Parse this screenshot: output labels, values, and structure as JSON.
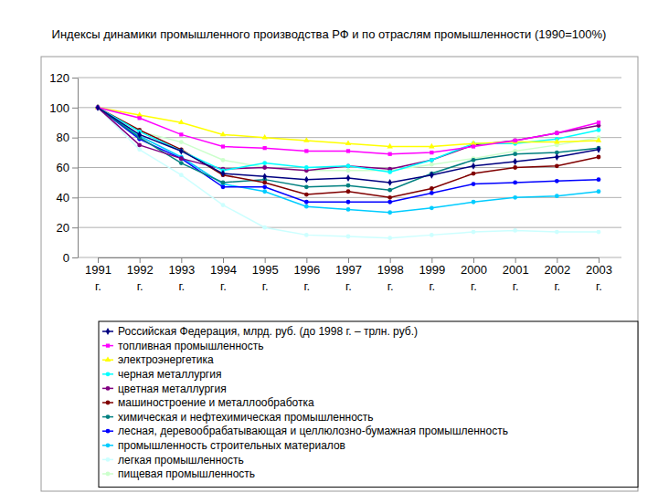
{
  "chart_data": {
    "type": "line",
    "title": "Индексы динамики промышленного производства РФ и по отраслям промышленности (1990=100%)",
    "categories": [
      "1991 г.",
      "1992 г.",
      "1993 г.",
      "1994 г.",
      "1995 г.",
      "1996 г.",
      "1997 г.",
      "1998 г.",
      "1999 г.",
      "2000 г.",
      "2001 г.",
      "2002 г.",
      "2003 г."
    ],
    "ylim": [
      0,
      120
    ],
    "yticks": [
      0,
      20,
      40,
      60,
      80,
      100,
      120
    ],
    "grid": true,
    "legend": "bottom",
    "series": [
      {
        "name": "Российская Федерация, млрд. руб. (до 1998 г. – трлн. руб.)",
        "color": "#000080",
        "marker": "diamond",
        "values": [
          100,
          82,
          71,
          56,
          54,
          52,
          53,
          50,
          55,
          61,
          64,
          67,
          72
        ]
      },
      {
        "name": "топливная промышленность",
        "color": "#ff00ff",
        "marker": "square",
        "values": [
          100,
          93,
          82,
          74,
          73,
          71,
          71,
          69,
          70,
          74,
          78,
          83,
          90
        ]
      },
      {
        "name": "электроэнергетика",
        "color": "#ffff00",
        "marker": "triangle",
        "values": [
          100,
          95,
          90,
          82,
          80,
          78,
          76,
          74,
          74,
          76,
          77,
          77,
          78
        ]
      },
      {
        "name": "черная металлургия",
        "color": "#00ffff",
        "marker": "circle",
        "values": [
          100,
          84,
          71,
          58,
          63,
          60,
          61,
          57,
          65,
          76,
          76,
          79,
          85
        ]
      },
      {
        "name": "цветная металлургия",
        "color": "#800080",
        "marker": "circle",
        "values": [
          100,
          75,
          66,
          59,
          60,
          58,
          61,
          59,
          65,
          75,
          78,
          83,
          88
        ]
      },
      {
        "name": "машиностроение и металлообработка",
        "color": "#800000",
        "marker": "circle",
        "values": [
          100,
          85,
          72,
          55,
          50,
          42,
          44,
          40,
          46,
          56,
          60,
          61,
          67
        ]
      },
      {
        "name": "химическая и нефтехимическая промышленность",
        "color": "#008080",
        "marker": "circle",
        "values": [
          100,
          80,
          63,
          50,
          52,
          47,
          48,
          45,
          56,
          65,
          69,
          70,
          73
        ]
      },
      {
        "name": "лесная, деревообрабатывающая и целлюлозно-бумажная промышленность",
        "color": "#0000ff",
        "marker": "circle",
        "values": [
          100,
          79,
          66,
          47,
          47,
          37,
          37,
          37,
          43,
          49,
          50,
          51,
          52
        ]
      },
      {
        "name": "промышленность строительных материалов",
        "color": "#00ccff",
        "marker": "circle",
        "values": [
          100,
          81,
          67,
          49,
          44,
          34,
          32,
          30,
          33,
          37,
          40,
          41,
          44
        ]
      },
      {
        "name": "легкая промышленность",
        "color": "#ccffff",
        "marker": "circle",
        "values": [
          100,
          72,
          55,
          35,
          20,
          15,
          14,
          13,
          15,
          17,
          18,
          17,
          17
        ]
      },
      {
        "name": "пищевая промышленность",
        "color": "#ccffcc",
        "marker": "circle",
        "values": [
          100,
          84,
          77,
          65,
          60,
          58,
          58,
          58,
          62,
          66,
          71,
          75,
          80
        ]
      }
    ]
  }
}
